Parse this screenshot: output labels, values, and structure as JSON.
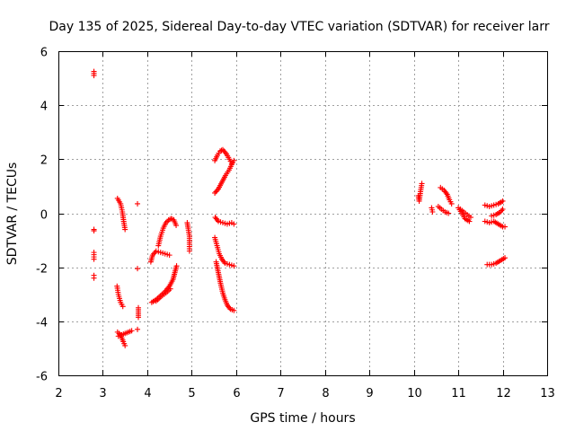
{
  "chart_data": {
    "type": "scatter",
    "title": "Day 135 of 2025, Sidereal Day-to-day VTEC variation (SDTVAR) for receiver larr",
    "xlabel": "GPS time / hours",
    "ylabel": "SDTVAR / TECUs",
    "xlim": [
      2,
      13
    ],
    "ylim": [
      -6,
      6
    ],
    "xticks": [
      2,
      3,
      4,
      5,
      6,
      7,
      8,
      9,
      10,
      11,
      12,
      13
    ],
    "yticks": [
      -6,
      -4,
      -2,
      0,
      2,
      4,
      6
    ],
    "grid": true,
    "marker": "+",
    "color": "#ff0000",
    "segments": [
      [
        [
          2.8,
          5.1
        ],
        [
          2.8,
          5.25
        ]
      ],
      [
        [
          2.8,
          -0.6
        ],
        [
          2.8,
          -0.65
        ]
      ],
      [
        [
          2.8,
          -1.45
        ],
        [
          2.8,
          -1.7
        ]
      ],
      [
        [
          2.8,
          -2.3
        ],
        [
          2.8,
          -2.4
        ]
      ],
      [
        [
          3.33,
          0.55
        ],
        [
          3.4,
          0.35
        ],
        [
          3.44,
          0.05
        ],
        [
          3.47,
          -0.3
        ],
        [
          3.5,
          -0.6
        ]
      ],
      [
        [
          3.32,
          -2.7
        ],
        [
          3.35,
          -3.0
        ],
        [
          3.4,
          -3.3
        ],
        [
          3.45,
          -3.45
        ]
      ],
      [
        [
          3.33,
          -4.4
        ],
        [
          3.4,
          -4.5
        ],
        [
          3.46,
          -4.75
        ],
        [
          3.5,
          -4.9
        ]
      ],
      [
        [
          3.35,
          -4.55
        ],
        [
          3.5,
          -4.45
        ],
        [
          3.65,
          -4.35
        ]
      ],
      [
        [
          3.78,
          0.35
        ]
      ],
      [
        [
          3.78,
          -2.05
        ]
      ],
      [
        [
          3.8,
          -3.5
        ],
        [
          3.8,
          -3.85
        ]
      ],
      [
        [
          3.78,
          -4.3
        ]
      ],
      [
        [
          4.08,
          -1.8
        ],
        [
          4.12,
          -1.55
        ],
        [
          4.2,
          -1.4
        ],
        [
          4.3,
          -1.45
        ],
        [
          4.4,
          -1.5
        ],
        [
          4.5,
          -1.55
        ]
      ],
      [
        [
          4.25,
          -1.2
        ],
        [
          4.3,
          -0.85
        ],
        [
          4.36,
          -0.55
        ],
        [
          4.42,
          -0.35
        ],
        [
          4.48,
          -0.25
        ],
        [
          4.54,
          -0.2
        ],
        [
          4.6,
          -0.25
        ],
        [
          4.65,
          -0.45
        ]
      ],
      [
        [
          4.1,
          -3.3
        ],
        [
          4.2,
          -3.2
        ],
        [
          4.3,
          -3.05
        ],
        [
          4.4,
          -2.9
        ],
        [
          4.5,
          -2.7
        ],
        [
          4.58,
          -2.45
        ],
        [
          4.62,
          -2.2
        ],
        [
          4.66,
          -1.95
        ]
      ],
      [
        [
          4.2,
          -3.25
        ],
        [
          4.3,
          -3.1
        ],
        [
          4.42,
          -2.95
        ],
        [
          4.52,
          -2.8
        ]
      ],
      [
        [
          4.9,
          -0.35
        ],
        [
          4.92,
          -0.55
        ],
        [
          4.95,
          -0.85
        ],
        [
          4.95,
          -1.15
        ],
        [
          4.95,
          -1.4
        ]
      ],
      [
        [
          5.52,
          0.75
        ],
        [
          5.6,
          0.9
        ],
        [
          5.68,
          1.15
        ],
        [
          5.76,
          1.4
        ],
        [
          5.84,
          1.6
        ],
        [
          5.9,
          1.8
        ],
        [
          5.95,
          1.95
        ]
      ],
      [
        [
          5.52,
          1.95
        ],
        [
          5.58,
          2.15
        ],
        [
          5.64,
          2.3
        ],
        [
          5.7,
          2.35
        ],
        [
          5.78,
          2.2
        ],
        [
          5.85,
          2.0
        ],
        [
          5.9,
          1.85
        ]
      ],
      [
        [
          5.53,
          -0.15
        ],
        [
          5.6,
          -0.3
        ],
        [
          5.7,
          -0.35
        ],
        [
          5.8,
          -0.4
        ],
        [
          5.9,
          -0.35
        ],
        [
          5.95,
          -0.4
        ]
      ],
      [
        [
          5.52,
          -0.9
        ],
        [
          5.57,
          -1.2
        ],
        [
          5.62,
          -1.5
        ],
        [
          5.68,
          -1.7
        ],
        [
          5.75,
          -1.85
        ],
        [
          5.85,
          -1.9
        ],
        [
          5.95,
          -1.95
        ]
      ],
      [
        [
          5.55,
          -1.8
        ],
        [
          5.6,
          -2.2
        ],
        [
          5.65,
          -2.6
        ],
        [
          5.7,
          -2.95
        ],
        [
          5.75,
          -3.2
        ],
        [
          5.8,
          -3.4
        ],
        [
          5.87,
          -3.55
        ],
        [
          5.95,
          -3.6
        ]
      ],
      [
        [
          10.1,
          0.65
        ],
        [
          10.12,
          0.45
        ],
        [
          10.15,
          0.8
        ],
        [
          10.18,
          1.1
        ]
      ],
      [
        [
          10.4,
          0.2
        ],
        [
          10.42,
          0.05
        ]
      ],
      [
        [
          10.55,
          0.25
        ],
        [
          10.62,
          0.15
        ],
        [
          10.7,
          0.05
        ],
        [
          10.78,
          0.0
        ]
      ],
      [
        [
          10.6,
          0.95
        ],
        [
          10.68,
          0.85
        ],
        [
          10.75,
          0.7
        ],
        [
          10.8,
          0.5
        ],
        [
          10.85,
          0.35
        ]
      ],
      [
        [
          11.0,
          0.2
        ],
        [
          11.08,
          0.0
        ],
        [
          11.15,
          -0.2
        ],
        [
          11.25,
          -0.3
        ]
      ],
      [
        [
          11.05,
          0.15
        ],
        [
          11.12,
          0.05
        ],
        [
          11.2,
          -0.05
        ],
        [
          11.28,
          -0.15
        ]
      ],
      [
        [
          11.6,
          0.3
        ],
        [
          11.7,
          0.25
        ],
        [
          11.8,
          0.3
        ],
        [
          11.9,
          0.35
        ],
        [
          12.0,
          0.45
        ]
      ],
      [
        [
          11.6,
          -0.3
        ],
        [
          11.7,
          -0.35
        ],
        [
          11.8,
          -0.3
        ],
        [
          11.9,
          -0.4
        ],
        [
          12.0,
          -0.5
        ],
        [
          12.05,
          -0.5
        ]
      ],
      [
        [
          11.65,
          -1.9
        ],
        [
          11.75,
          -1.9
        ],
        [
          11.85,
          -1.85
        ],
        [
          11.95,
          -1.75
        ],
        [
          12.05,
          -1.65
        ]
      ],
      [
        [
          11.75,
          -0.1
        ],
        [
          11.85,
          -0.05
        ],
        [
          11.95,
          0.05
        ],
        [
          12.0,
          0.15
        ]
      ]
    ]
  }
}
